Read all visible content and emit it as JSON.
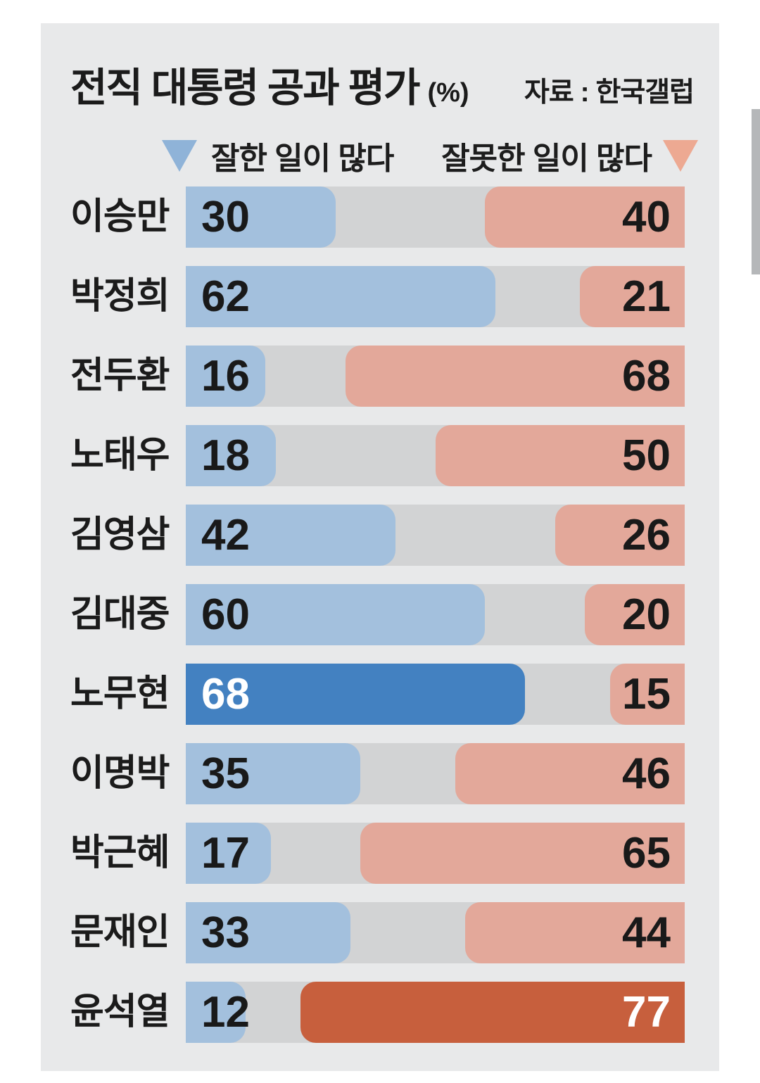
{
  "page": {
    "background": "#ffffff"
  },
  "panel": {
    "background": "#e8e9ea"
  },
  "header": {
    "title": "전직 대통령 공과 평가",
    "unit": "(%)",
    "source": "자료 : 한국갤럽"
  },
  "legend": {
    "positive_label": "잘한 일이 많다",
    "negative_label": "잘못한 일이 많다",
    "positive_marker": "triangle-down",
    "negative_marker": "triangle-down",
    "positive_color": "#8fb3d8",
    "negative_color": "#eda992"
  },
  "colors": {
    "track": "#d2d3d4",
    "positive": "#a3c0dd",
    "positive_highlight": "#4381c1",
    "negative": "#e3a89a",
    "negative_highlight": "#c75f3d",
    "text": "#1b1b1b",
    "value_on_highlight": "#ffffff",
    "scrollbar": "#b5b7b9"
  },
  "scrollbar": {
    "visible": true
  },
  "chart_data": {
    "type": "bar",
    "orientation": "horizontal",
    "diverging": true,
    "title": "전직 대통령 공과 평가",
    "unit": "%",
    "source": "자료 : 한국갤럽",
    "xlim": [
      0,
      100
    ],
    "grid": false,
    "legend_position": "top",
    "legend_entries": [
      "잘한 일이 많다",
      "잘못한 일이 많다"
    ],
    "categories": [
      "이승만",
      "박정희",
      "전두환",
      "노태우",
      "김영삼",
      "김대중",
      "노무현",
      "이명박",
      "박근혜",
      "문재인",
      "윤석열"
    ],
    "series": [
      {
        "name": "잘한 일이 많다",
        "values": [
          30,
          62,
          16,
          18,
          42,
          60,
          68,
          35,
          17,
          33,
          12
        ]
      },
      {
        "name": "잘못한 일이 많다",
        "values": [
          40,
          21,
          68,
          50,
          26,
          20,
          15,
          46,
          65,
          44,
          77
        ]
      }
    ],
    "rows": [
      {
        "name": "이승만",
        "positive": 30,
        "negative": 40,
        "highlight": null
      },
      {
        "name": "박정희",
        "positive": 62,
        "negative": 21,
        "highlight": null
      },
      {
        "name": "전두환",
        "positive": 16,
        "negative": 68,
        "highlight": null
      },
      {
        "name": "노태우",
        "positive": 18,
        "negative": 50,
        "highlight": null
      },
      {
        "name": "김영삼",
        "positive": 42,
        "negative": 26,
        "highlight": null
      },
      {
        "name": "김대중",
        "positive": 60,
        "negative": 20,
        "highlight": null
      },
      {
        "name": "노무현",
        "positive": 68,
        "negative": 15,
        "highlight": "positive"
      },
      {
        "name": "이명박",
        "positive": 35,
        "negative": 46,
        "highlight": null
      },
      {
        "name": "박근혜",
        "positive": 17,
        "negative": 65,
        "highlight": null
      },
      {
        "name": "문재인",
        "positive": 33,
        "negative": 44,
        "highlight": null
      },
      {
        "name": "윤석열",
        "positive": 12,
        "negative": 77,
        "highlight": "negative"
      }
    ]
  }
}
